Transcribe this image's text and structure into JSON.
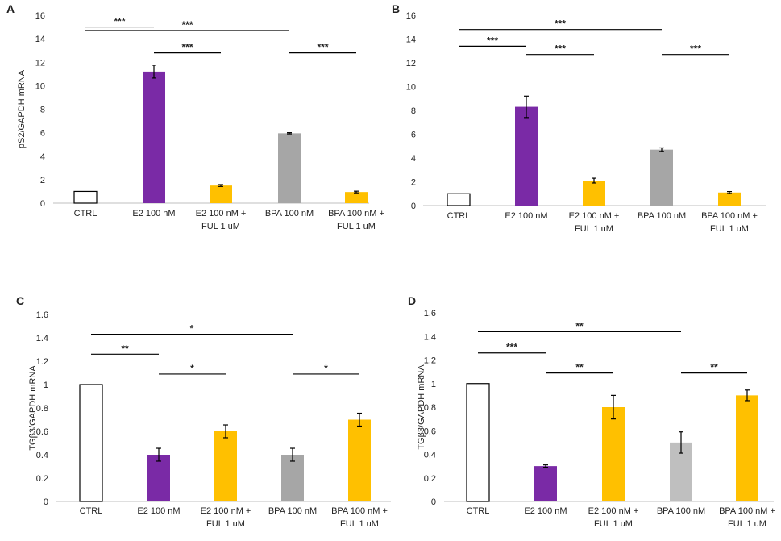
{
  "figure": {
    "panels": [
      "A",
      "B",
      "C",
      "D"
    ]
  },
  "colors": {
    "ctrl_fill": "#ffffff",
    "ctrl_stroke": "#000000",
    "e2": "#7a2aa6",
    "ful": "#ffc000",
    "bpa": "#a6a6a6",
    "bpa_light": "#bfbfbf",
    "axis": "#000000"
  },
  "chart_data": [
    {
      "panel": "A",
      "type": "bar",
      "title": "",
      "xlabel": "",
      "ylabel": "pS2/GAPDH mRNA",
      "ylim": [
        0,
        16
      ],
      "yticks": [
        "0",
        "2",
        "4",
        "6",
        "8",
        "10",
        "12",
        "14",
        "16"
      ],
      "categories": [
        [
          "CTRL"
        ],
        [
          "E2 100 nM"
        ],
        [
          "E2 100 nM +",
          "FUL 1 uM"
        ],
        [
          "BPA 100 nM"
        ],
        [
          "BPA 100 nM +",
          "FUL 1 uM"
        ]
      ],
      "values": [
        1.0,
        11.2,
        1.5,
        5.95,
        0.95
      ],
      "errors": [
        0,
        0.55,
        0.08,
        0.05,
        0.07
      ],
      "bar_colors": [
        "ctrl",
        "e2",
        "ful",
        "bpa",
        "ful"
      ],
      "significance": [
        {
          "from": 0,
          "to": 1,
          "value": 15.0,
          "label": "***"
        },
        {
          "from": 0,
          "to": 3,
          "value": 14.7,
          "label": "***"
        },
        {
          "from": 1,
          "to": 2,
          "value": 12.8,
          "label": "***"
        },
        {
          "from": 3,
          "to": 4,
          "value": 12.8,
          "label": "***"
        }
      ]
    },
    {
      "panel": "B",
      "type": "bar",
      "title": "",
      "xlabel": "",
      "ylabel": "",
      "ylim": [
        0,
        16
      ],
      "yticks": [
        "0",
        "2",
        "4",
        "6",
        "8",
        "10",
        "12",
        "14",
        "16"
      ],
      "categories": [
        [
          "CTRL"
        ],
        [
          "E2 100 nM"
        ],
        [
          "E2 100 nM +",
          "FUL 1 uM"
        ],
        [
          "BPA 100 nM"
        ],
        [
          "BPA 100 nM +",
          "FUL 1 uM"
        ]
      ],
      "values": [
        1.0,
        8.3,
        2.1,
        4.7,
        1.1
      ],
      "errors": [
        0,
        0.9,
        0.2,
        0.15,
        0.08
      ],
      "bar_colors": [
        "ctrl",
        "e2",
        "ful",
        "bpa",
        "ful"
      ],
      "significance": [
        {
          "from": 0,
          "to": 1,
          "value": 13.4,
          "label": "***"
        },
        {
          "from": 0,
          "to": 3,
          "value": 14.8,
          "label": "***"
        },
        {
          "from": 1,
          "to": 2,
          "value": 12.7,
          "label": "***"
        },
        {
          "from": 3,
          "to": 4,
          "value": 12.7,
          "label": "***"
        }
      ]
    },
    {
      "panel": "C",
      "type": "bar",
      "title": "",
      "xlabel": "",
      "ylabel": "TGβ3/GAPDH mRNA",
      "ylim": [
        0,
        1.6
      ],
      "yticks": [
        "0",
        "0.2",
        "0.4",
        "0.6",
        "0.8",
        "1",
        "1.2",
        "1.4",
        "1.6"
      ],
      "categories": [
        [
          "CTRL"
        ],
        [
          "E2 100 nM"
        ],
        [
          "E2 100 nM +",
          "FUL 1 uM"
        ],
        [
          "BPA 100 nM"
        ],
        [
          "BPA 100 nM +",
          "FUL 1 uM"
        ]
      ],
      "values": [
        1.0,
        0.4,
        0.6,
        0.4,
        0.7
      ],
      "errors": [
        0,
        0.055,
        0.055,
        0.055,
        0.055
      ],
      "bar_colors": [
        "ctrl",
        "e2",
        "ful",
        "bpa",
        "ful"
      ],
      "significance": [
        {
          "from": 0,
          "to": 1,
          "value": 1.26,
          "label": "**"
        },
        {
          "from": 0,
          "to": 3,
          "value": 1.43,
          "label": "*"
        },
        {
          "from": 1,
          "to": 2,
          "value": 1.09,
          "label": "*"
        },
        {
          "from": 3,
          "to": 4,
          "value": 1.09,
          "label": "*"
        }
      ]
    },
    {
      "panel": "D",
      "type": "bar",
      "title": "",
      "xlabel": "",
      "ylabel": "TGβ3/GAPDH mRNA",
      "ylim": [
        0,
        1.6
      ],
      "yticks": [
        "0",
        "0.2",
        "0.4",
        "0.6",
        "0.8",
        "1",
        "1.2",
        "1.4",
        "1.6"
      ],
      "categories": [
        [
          "CTRL"
        ],
        [
          "E2 100 nM"
        ],
        [
          "E2 100 nM +",
          "FUL 1 uM"
        ],
        [
          "BPA 100 nM"
        ],
        [
          "BPA 100 nM +",
          "FUL 1 uM"
        ]
      ],
      "values": [
        1.0,
        0.3,
        0.8,
        0.5,
        0.9
      ],
      "errors": [
        0,
        0.01,
        0.1,
        0.09,
        0.045
      ],
      "bar_colors": [
        "ctrl",
        "e2",
        "ful",
        "bpa_light",
        "ful"
      ],
      "significance": [
        {
          "from": 0,
          "to": 1,
          "value": 1.26,
          "label": "***"
        },
        {
          "from": 0,
          "to": 3,
          "value": 1.44,
          "label": "**"
        },
        {
          "from": 1,
          "to": 2,
          "value": 1.09,
          "label": "**"
        },
        {
          "from": 3,
          "to": 4,
          "value": 1.09,
          "label": "**"
        }
      ]
    }
  ]
}
